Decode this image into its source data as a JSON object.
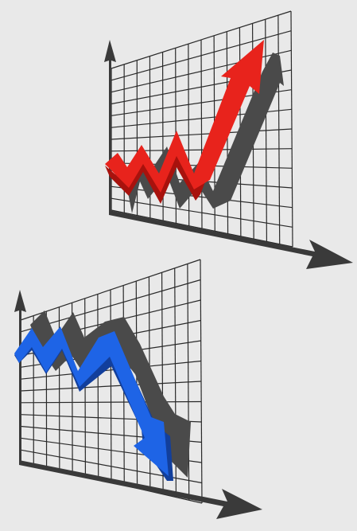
{
  "illustration": {
    "background": "#e9e9e9",
    "grid_color": "#2a2a2a",
    "axis_color": "#3a3a3a",
    "shadow_color": "#4a4a4a",
    "upper_chart": {
      "icon": "uptrend-arrow-icon",
      "trend": "rising",
      "arrow_color": "#e8231c",
      "arrow_dark": "#a8120d"
    },
    "lower_chart": {
      "icon": "downtrend-arrow-icon",
      "trend": "falling",
      "arrow_color": "#1e64e6",
      "arrow_dark": "#123f9c"
    }
  }
}
